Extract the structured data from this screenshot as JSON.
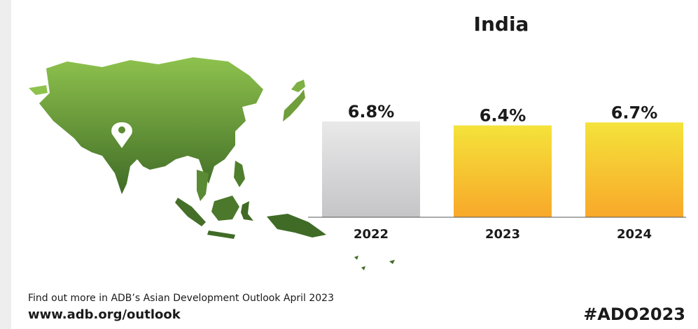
{
  "chart_data": {
    "type": "bar",
    "title": "India",
    "categories": [
      "2022",
      "2023",
      "2024"
    ],
    "values": [
      6.8,
      6.4,
      6.7
    ],
    "value_labels": [
      "6.8%",
      "6.4%",
      "6.7%"
    ],
    "value_unit": "%",
    "ylim": [
      0,
      7
    ],
    "grid": false,
    "legend": "none",
    "bar_styles": [
      "actual-gray",
      "forecast-yellow",
      "forecast-yellow"
    ]
  },
  "colors": {
    "gray_top": "#e9e9ea",
    "gray_bottom": "#c5c4c6",
    "yellow_top": "#f4e33a",
    "yellow_bottom": "#f8a82a",
    "map_light": "#8ec24d",
    "map_dark": "#3f6b26",
    "pin": "#ffffff"
  },
  "icons": {
    "map": "asia-pacific-map",
    "pin": "location-pin-icon"
  },
  "footer": {
    "text": "Find out more in ADB’s Asian Development Outlook April 2023",
    "url": "www.adb.org/outlook",
    "hashtag": "#ADO2023"
  }
}
